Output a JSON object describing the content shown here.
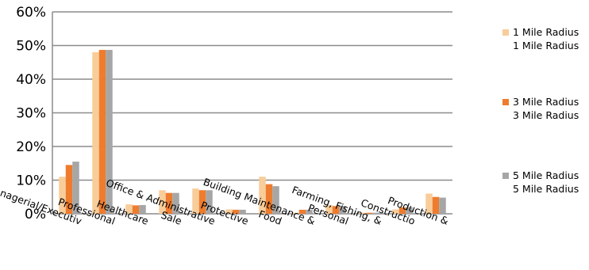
{
  "chart_data": {
    "type": "bar",
    "categories": [
      "Managerial/Executiv",
      "Professional",
      "Healthcare",
      "Sale",
      "Office & Administrative",
      "Protective",
      "Food",
      "Building Maintenance &",
      "Personal",
      "Farming, Fishing, &",
      "Constructio",
      "Production &"
    ],
    "series": [
      {
        "name": "1 Mile Radius",
        "subtitle": "1 Mile Radius",
        "color": "#F8CD9A",
        "values": [
          11.0,
          48.0,
          2.8,
          7.0,
          7.5,
          1.3,
          11.0,
          0.3,
          2.6,
          0.3,
          1.3,
          6.0
        ]
      },
      {
        "name": "3 Mile Radius",
        "subtitle": "3 Mile Radius",
        "color": "#EE7C2E",
        "values": [
          14.5,
          48.7,
          2.5,
          6.2,
          7.0,
          1.2,
          8.8,
          1.2,
          2.3,
          0.3,
          1.9,
          5.0
        ]
      },
      {
        "name": "5 Mile Radius",
        "subtitle": "5 Mile Radius",
        "color": "#A6A6A6",
        "values": [
          15.5,
          48.7,
          2.6,
          6.2,
          7.0,
          1.2,
          8.2,
          1.2,
          2.3,
          0.3,
          2.0,
          4.8
        ]
      }
    ],
    "ylim": [
      0,
      60
    ],
    "yticks": [
      "0%",
      "10%",
      "20%",
      "30%",
      "40%",
      "50%",
      "60%"
    ],
    "ytick_values": [
      0,
      10,
      20,
      30,
      40,
      50,
      60
    ],
    "grid": true,
    "legend_position": "right",
    "title": "",
    "xlabel": "",
    "ylabel": ""
  }
}
